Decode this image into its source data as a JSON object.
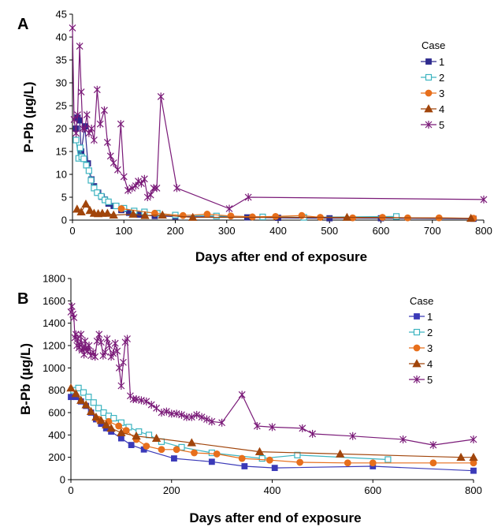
{
  "chart_data": [
    {
      "panel_label": "A",
      "type": "line",
      "xlabel": "Days after end of exposure",
      "ylabel": "P-Pb (µg/L)",
      "xlim": [
        0,
        800
      ],
      "ylim": [
        0,
        45
      ],
      "xticks": [
        0,
        100,
        200,
        300,
        400,
        500,
        600,
        700,
        800
      ],
      "yticks": [
        0,
        5,
        10,
        15,
        20,
        25,
        30,
        35,
        40,
        45
      ],
      "legend_title": "Case",
      "legend_position": "right",
      "series": [
        {
          "name": "1",
          "color": "#2e2a8e",
          "marker": "square-filled",
          "x": [
            7,
            10,
            14,
            17,
            24,
            30,
            37,
            42,
            50,
            57,
            63,
            70,
            80,
            95,
            110,
            130,
            160,
            200,
            340,
            400,
            500,
            600,
            780
          ],
          "y": [
            20,
            22.4,
            21.8,
            15,
            20.5,
            12.4,
            8.9,
            7.4,
            6.0,
            5.1,
            4.5,
            3.6,
            3.1,
            2.2,
            1.6,
            1.2,
            0.9,
            0.8,
            0.6,
            0.5,
            0.4,
            0.4,
            0.3
          ]
        },
        {
          "name": "2",
          "color": "#3db4c0",
          "marker": "square-open",
          "x": [
            7,
            12,
            15,
            18,
            22,
            27,
            32,
            36,
            42,
            48,
            56,
            63,
            70,
            85,
            100,
            120,
            140,
            165,
            200,
            280,
            370,
            450,
            630
          ],
          "y": [
            17.5,
            13.5,
            15.8,
            13.8,
            13.4,
            12.0,
            10.8,
            8.7,
            7.0,
            6.0,
            5.2,
            4.4,
            4.0,
            3.1,
            2.6,
            2.0,
            1.8,
            1.5,
            1.1,
            0.9,
            0.7,
            0.6,
            0.8
          ]
        },
        {
          "name": "3",
          "color": "#e76f1c",
          "marker": "circle",
          "x": [
            95,
            160,
            215,
            262,
            308,
            350,
            395,
            446,
            482,
            545,
            603,
            652,
            713,
            780
          ],
          "y": [
            2.5,
            1.5,
            1.0,
            1.3,
            0.9,
            0.7,
            0.8,
            1.0,
            0.6,
            0.5,
            0.6,
            0.5,
            0.5,
            0.4
          ]
        },
        {
          "name": "4",
          "color": "#a1450b",
          "marker": "triangle",
          "x": [
            9,
            17,
            26,
            34,
            42,
            50,
            58,
            68,
            80,
            118,
            141,
            175,
            234,
            534,
            775
          ],
          "y": [
            2.4,
            1.8,
            3.5,
            2.1,
            1.5,
            1.4,
            1.5,
            1.5,
            1.1,
            1.3,
            1.0,
            1.1,
            0.6,
            0.6,
            0.4
          ]
        },
        {
          "name": "5",
          "color": "#7a1a78",
          "marker": "star",
          "x": [
            0,
            3,
            7,
            10,
            14,
            17,
            20,
            24,
            28,
            32,
            37,
            42,
            48,
            54,
            62,
            68,
            74,
            80,
            88,
            94,
            100,
            108,
            116,
            123,
            128,
            134,
            140,
            146,
            152,
            158,
            164,
            172,
            203,
            305,
            342,
            800
          ],
          "y": [
            42,
            22,
            19,
            23,
            38,
            28,
            20,
            20,
            23,
            19,
            20,
            17.5,
            28.5,
            21,
            24,
            17,
            14,
            12.5,
            11,
            21,
            9.5,
            6.5,
            7,
            7.5,
            8.5,
            8,
            9,
            5,
            5.5,
            7,
            7,
            27,
            7,
            2.5,
            5,
            4.5
          ]
        }
      ]
    },
    {
      "panel_label": "B",
      "type": "line",
      "xlabel": "Days after end of exposure",
      "ylabel": "B-Pb (µg/L)",
      "xlim": [
        0,
        800
      ],
      "ylim": [
        0,
        1800
      ],
      "xticks": [
        0,
        200,
        400,
        600,
        800
      ],
      "yticks": [
        0,
        200,
        400,
        600,
        800,
        1000,
        1200,
        1400,
        1600,
        1800
      ],
      "legend_title": "Case",
      "legend_position": "right",
      "series": [
        {
          "name": "1",
          "color": "#3b3ab8",
          "marker": "square-filled",
          "x": [
            0,
            10,
            20,
            30,
            40,
            50,
            60,
            70,
            80,
            100,
            120,
            145,
            205,
            280,
            345,
            405,
            600,
            800
          ],
          "y": [
            740,
            740,
            700,
            660,
            600,
            540,
            500,
            460,
            430,
            370,
            310,
            270,
            190,
            160,
            120,
            105,
            120,
            80
          ]
        },
        {
          "name": "2",
          "color": "#3db4c0",
          "marker": "square-open",
          "x": [
            5,
            15,
            25,
            35,
            45,
            55,
            65,
            75,
            85,
            100,
            115,
            135,
            155,
            180,
            220,
            280,
            380,
            450,
            630
          ],
          "y": [
            800,
            820,
            780,
            740,
            690,
            640,
            600,
            570,
            550,
            510,
            470,
            430,
            400,
            340,
            290,
            240,
            190,
            220,
            180
          ]
        },
        {
          "name": "3",
          "color": "#e76f1c",
          "marker": "circle",
          "x": [
            55,
            75,
            95,
            110,
            130,
            150,
            180,
            210,
            245,
            290,
            340,
            395,
            455,
            550,
            600,
            720,
            800
          ],
          "y": [
            540,
            520,
            480,
            440,
            360,
            300,
            270,
            270,
            240,
            230,
            190,
            175,
            155,
            150,
            150,
            150,
            150
          ]
        },
        {
          "name": "4",
          "color": "#a1450b",
          "marker": "triangle",
          "x": [
            0,
            10,
            20,
            30,
            40,
            50,
            60,
            70,
            80,
            100,
            130,
            170,
            240,
            375,
            535,
            775,
            800
          ],
          "y": [
            820,
            770,
            710,
            670,
            610,
            560,
            530,
            490,
            460,
            420,
            390,
            370,
            330,
            250,
            230,
            200,
            200
          ]
        },
        {
          "name": "5",
          "color": "#7a1a78",
          "marker": "star",
          "x": [
            0,
            2,
            4,
            6,
            8,
            10,
            12,
            14,
            16,
            18,
            20,
            22,
            24,
            26,
            28,
            30,
            33,
            36,
            40,
            44,
            48,
            52,
            56,
            60,
            64,
            68,
            72,
            76,
            80,
            84,
            88,
            92,
            96,
            100,
            104,
            108,
            112,
            118,
            124,
            130,
            140,
            150,
            160,
            170,
            180,
            190,
            200,
            210,
            220,
            230,
            240,
            250,
            260,
            270,
            280,
            300,
            340,
            370,
            400,
            460,
            480,
            560,
            660,
            720,
            800
          ],
          "y": [
            1500,
            1550,
            1480,
            1450,
            1270,
            1300,
            1200,
            1260,
            1180,
            1210,
            1300,
            1160,
            1180,
            1120,
            1240,
            1180,
            1150,
            1200,
            1110,
            1140,
            1100,
            1240,
            1300,
            1230,
            1110,
            1140,
            1260,
            1200,
            1100,
            1130,
            1220,
            1150,
            1000,
            840,
            1050,
            1230,
            1260,
            750,
            720,
            720,
            710,
            700,
            670,
            640,
            600,
            610,
            590,
            590,
            580,
            560,
            560,
            580,
            560,
            540,
            520,
            510,
            760,
            480,
            470,
            460,
            410,
            390,
            360,
            310,
            360
          ]
        }
      ]
    }
  ]
}
